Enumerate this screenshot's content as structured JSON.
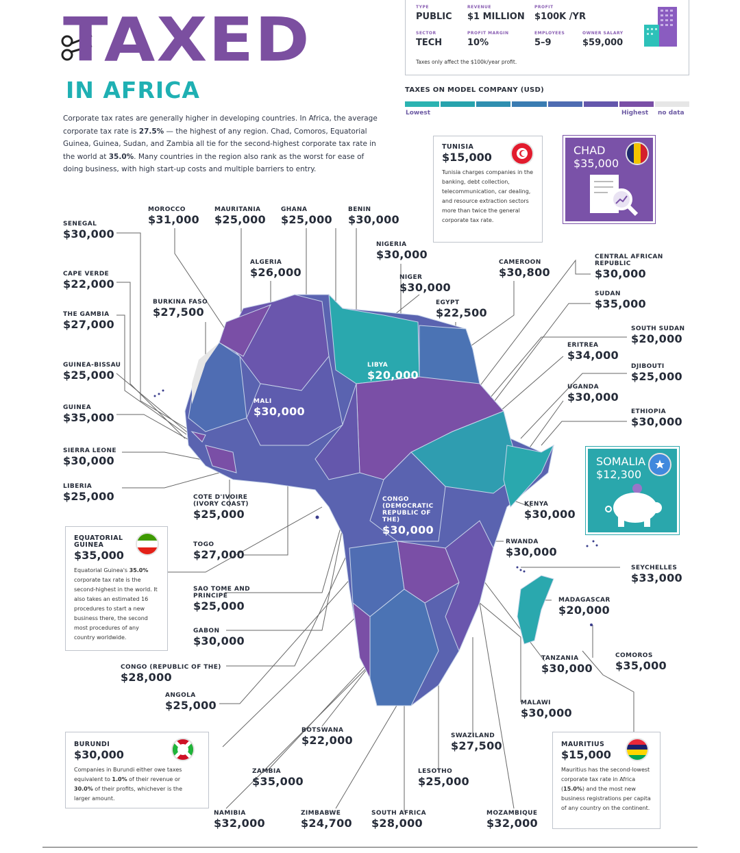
{
  "header": {
    "title": "TAXED",
    "subtitle": "IN AFRICA",
    "intro_html": "Corporate tax rates are generally higher in developing countries. In Africa, the average corporate tax rate is <b>27.5%</b> — the highest of any region. Chad, Comoros, Equatorial Guinea, Guinea, Sudan, and Zambia all tie for the second-highest corporate tax rate in the world at <b>35.0%</b>. Many countries in the region also rank as the worst for ease of doing business, with high start-up costs and multiple barriers to entry."
  },
  "model_company": {
    "fields": [
      {
        "label": "TYPE",
        "value": "PUBLIC"
      },
      {
        "label": "REVENUE",
        "value": "$1 MILLION"
      },
      {
        "label": "PROFIT",
        "value": "$100K /YR"
      },
      {
        "label": "SECTOR",
        "value": "TECH"
      },
      {
        "label": "PROFIT MARGIN",
        "value": "10%"
      },
      {
        "label": "EMPLOYEES",
        "value": "5–9"
      },
      {
        "label": "OWNER SALARY",
        "value": "$59,000"
      }
    ],
    "note": "Taxes only affect the $100k/year profit."
  },
  "legend": {
    "title": "TAXES ON MODEL COMPANY (USD)",
    "low": "Lowest",
    "high": "Highest",
    "nodata": "no data",
    "colors": [
      "#2bb3b1",
      "#27a3ad",
      "#2f8fb0",
      "#3a7cb2",
      "#4e6cb2",
      "#6457ac",
      "#7a4fa6",
      "#e6e6e6"
    ]
  },
  "countries": [
    {
      "id": "senegal",
      "name": "SENEGAL",
      "value": "$30,000"
    },
    {
      "id": "cape-verde",
      "name": "CAPE VERDE",
      "value": "$22,000"
    },
    {
      "id": "the-gambia",
      "name": "THE GAMBIA",
      "value": "$27,000"
    },
    {
      "id": "guinea-bissau",
      "name": "GUINEA-BISSAU",
      "value": "$25,000"
    },
    {
      "id": "guinea",
      "name": "GUINEA",
      "value": "$35,000"
    },
    {
      "id": "sierra-leone",
      "name": "SIERRA LEONE",
      "value": "$30,000"
    },
    {
      "id": "liberia",
      "name": "LIBERIA",
      "value": "$25,000"
    },
    {
      "id": "morocco",
      "name": "MOROCCO",
      "value": "$31,000"
    },
    {
      "id": "mauritania",
      "name": "MAURITANIA",
      "value": "$25,000"
    },
    {
      "id": "ghana",
      "name": "GHANA",
      "value": "$25,000"
    },
    {
      "id": "benin",
      "name": "BENIN",
      "value": "$30,000"
    },
    {
      "id": "nigeria",
      "name": "NIGERIA",
      "value": "$30,000"
    },
    {
      "id": "algeria",
      "name": "ALGERIA",
      "value": "$26,000"
    },
    {
      "id": "niger",
      "name": "NIGER",
      "value": "$30,000"
    },
    {
      "id": "burkina-faso",
      "name": "BURKINA FASO",
      "value": "$27,500"
    },
    {
      "id": "egypt",
      "name": "EGYPT",
      "value": "$22,500"
    },
    {
      "id": "cameroon",
      "name": "CAMEROON",
      "value": "$30,800"
    },
    {
      "id": "car",
      "name": "CENTRAL AFRICAN REPUBLIC",
      "value": "$30,000"
    },
    {
      "id": "sudan",
      "name": "SUDAN",
      "value": "$35,000"
    },
    {
      "id": "south-sudan",
      "name": "SOUTH SUDAN",
      "value": "$20,000"
    },
    {
      "id": "eritrea",
      "name": "ERITREA",
      "value": "$34,000"
    },
    {
      "id": "djibouti",
      "name": "DJIBOUTI",
      "value": "$25,000"
    },
    {
      "id": "uganda",
      "name": "UGANDA",
      "value": "$30,000"
    },
    {
      "id": "ethiopia",
      "name": "ETHIOPIA",
      "value": "$30,000"
    },
    {
      "id": "libya",
      "name": "LIBYA",
      "value": "$20,000"
    },
    {
      "id": "mali",
      "name": "MALI",
      "value": "$30,000"
    },
    {
      "id": "cote-divoire",
      "name": "COTE D'IVOIRE (IVORY COAST)",
      "value": "$25,000"
    },
    {
      "id": "drc",
      "name": "CONGO (DEMOCRATIC REPUBLIC OF THE)",
      "value": "$30,000"
    },
    {
      "id": "kenya",
      "name": "KENYA",
      "value": "$30,000"
    },
    {
      "id": "togo",
      "name": "TOGO",
      "value": "$27,000"
    },
    {
      "id": "rwanda",
      "name": "RWANDA",
      "value": "$30,000"
    },
    {
      "id": "seychelles",
      "name": "SEYCHELLES",
      "value": "$33,000"
    },
    {
      "id": "sao-tome",
      "name": "SAO TOME AND PRINCIPE",
      "value": "$25,000"
    },
    {
      "id": "madagascar",
      "name": "MADAGASCAR",
      "value": "$20,000"
    },
    {
      "id": "gabon",
      "name": "GABON",
      "value": "$30,000"
    },
    {
      "id": "tanzania",
      "name": "TANZANIA",
      "value": "$30,000"
    },
    {
      "id": "comoros",
      "name": "COMOROS",
      "value": "$35,000"
    },
    {
      "id": "congo",
      "name": "CONGO (REPUBLIC OF THE)",
      "value": "$28,000"
    },
    {
      "id": "angola",
      "name": "ANGOLA",
      "value": "$25,000"
    },
    {
      "id": "malawi",
      "name": "MALAWI",
      "value": "$30,000"
    },
    {
      "id": "botswana",
      "name": "BOTSWANA",
      "value": "$22,000"
    },
    {
      "id": "swaziland",
      "name": "SWAZILAND",
      "value": "$27,500"
    },
    {
      "id": "zambia",
      "name": "ZAMBIA",
      "value": "$35,000"
    },
    {
      "id": "lesotho",
      "name": "LESOTHO",
      "value": "$25,000"
    },
    {
      "id": "namibia",
      "name": "NAMIBIA",
      "value": "$32,000"
    },
    {
      "id": "zimbabwe",
      "name": "ZIMBABWE",
      "value": "$24,700"
    },
    {
      "id": "south-africa",
      "name": "SOUTH AFRICA",
      "value": "$28,000"
    },
    {
      "id": "mozambique",
      "name": "MOZAMBIQUE",
      "value": "$32,000"
    }
  ],
  "callouts": {
    "tunisia": {
      "name": "TUNISIA",
      "value": "$15,000",
      "text": "Tunisia charges companies in the banking, debt collection, telecommunication, car dealing, and resource extraction sectors more than twice the general corporate tax rate."
    },
    "chad": {
      "name": "CHAD",
      "value": "$35,000"
    },
    "somalia": {
      "name": "SOMALIA",
      "value": "$12,300"
    },
    "equatorial_guinea": {
      "name": "EQUATORIAL GUINEA",
      "value": "$35,000",
      "text_html": "Equatorial Guinea's <b>35.0%</b> corporate tax rate is the second-highest in the world. It also takes an estimated 16 procedures to start a new business there, the second most procedures of any country worldwide."
    },
    "burundi": {
      "name": "BURUNDI",
      "value": "$30,000",
      "text_html": "Companies in Burundi either owe taxes equivalent to <b>1.0%</b> of their revenue or <b>30.0%</b> of their profits, whichever is the larger amount."
    },
    "mauritius": {
      "name": "MAURITIUS",
      "value": "$15,000",
      "text_html": "Mauritius has the second-lowest corporate tax rate in Africa (<b>15.0%</b>) and the most new business registrations per capita of any country on the continent."
    }
  }
}
